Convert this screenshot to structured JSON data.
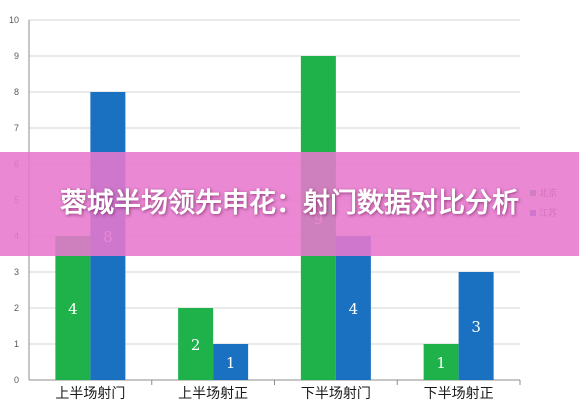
{
  "chart_data": {
    "type": "bar",
    "categories": [
      "上半场射门",
      "上半场射正",
      "下半场射门",
      "下半场射正"
    ],
    "series": [
      {
        "name": "北京",
        "values": [
          4,
          2,
          9,
          1
        ],
        "color": "#1fb24a"
      },
      {
        "name": "江苏",
        "values": [
          8,
          1,
          4,
          3
        ],
        "color": "#1a71c2"
      }
    ],
    "ylim": [
      0,
      10
    ],
    "yticks": [
      0,
      1,
      2,
      3,
      4,
      5,
      6,
      7,
      8,
      9,
      10
    ],
    "grid": true,
    "legend": "right"
  },
  "banner": {
    "text": "蓉城半场领先申花：射门数据对比分析"
  }
}
